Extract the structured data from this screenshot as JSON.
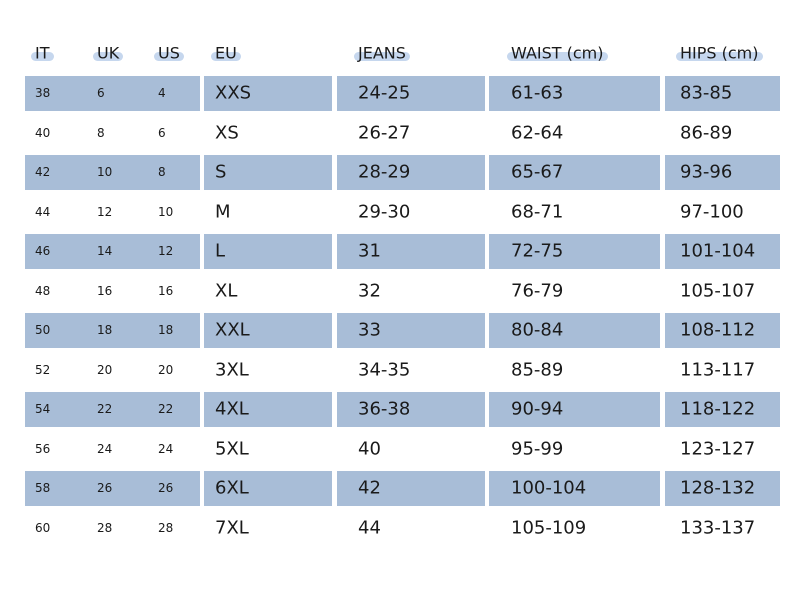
{
  "table": {
    "header": [
      "IT",
      "UK",
      "US",
      "EU",
      "JEANS",
      "WAIST (cm)",
      "HIPS (cm)"
    ],
    "rows": [
      [
        "38",
        "6",
        "4",
        "XXS",
        "24-25",
        "61-63",
        "83-85"
      ],
      [
        "40",
        "8",
        "6",
        "XS",
        "26-27",
        "62-64",
        "86-89"
      ],
      [
        "42",
        "10",
        "8",
        "S",
        "28-29",
        "65-67",
        "93-96"
      ],
      [
        "44",
        "12",
        "10",
        "M",
        "29-30",
        "68-71",
        "97-100"
      ],
      [
        "46",
        "14",
        "12",
        "L",
        "31",
        "72-75",
        "101-104"
      ],
      [
        "48",
        "16",
        "16",
        "XL",
        "32",
        "76-79",
        "105-107"
      ],
      [
        "50",
        "18",
        "18",
        "XXL",
        "33",
        "80-84",
        "108-112"
      ],
      [
        "52",
        "20",
        "20",
        "3XL",
        "34-35",
        "85-89",
        "113-117"
      ],
      [
        "54",
        "22",
        "22",
        "4XL",
        "36-38",
        "90-94",
        "118-122"
      ],
      [
        "56",
        "24",
        "24",
        "5XL",
        "40",
        "95-99",
        "123-127"
      ],
      [
        "58",
        "26",
        "26",
        "6XL",
        "42",
        "100-104",
        "128-132"
      ],
      [
        "60",
        "28",
        "28",
        "7XL",
        "44",
        "105-109",
        "133-137"
      ]
    ]
  }
}
